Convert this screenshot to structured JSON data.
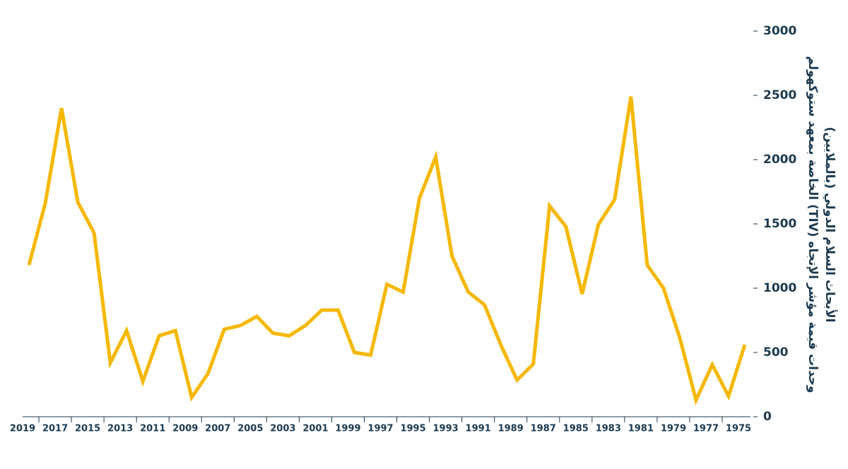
{
  "chart_data": {
    "type": "line",
    "y_label": [
      "وحدات قيمة مؤشر الإتجاه (TIV)  الخاصة بمعهد ستوكهولم",
      "الأبحاث السلام الدولي (بالملايين)"
    ],
    "categories": [
      "2019",
      null,
      "2017",
      null,
      "2015",
      null,
      "2013",
      null,
      "2011",
      null,
      "2009",
      null,
      "2007",
      null,
      "2005",
      null,
      "2003",
      null,
      "2001",
      null,
      "1999",
      null,
      "1997",
      null,
      "1995",
      null,
      "1993",
      null,
      "1991",
      null,
      "1989",
      null,
      "1987",
      null,
      "1985",
      null,
      "1983",
      null,
      "1981",
      null,
      "1979",
      null,
      "1977",
      null,
      "1975"
    ],
    "series": [
      {
        "name": "TIV",
        "color": "#f5b800",
        "values": [
          1180,
          1660,
          2400,
          1670,
          1430,
          420,
          670,
          275,
          630,
          670,
          150,
          335,
          680,
          710,
          780,
          650,
          630,
          710,
          830,
          830,
          500,
          480,
          1030,
          970,
          1700,
          2020,
          1250,
          970,
          870,
          560,
          285,
          410,
          1640,
          1480,
          955,
          1495,
          1690,
          2490,
          1180,
          1000,
          615,
          130,
          405,
          160,
          560
        ]
      }
    ],
    "ylim": [
      0,
      3000
    ],
    "yticks": [
      0,
      500,
      1000,
      1500,
      2000,
      2500,
      3000
    ]
  }
}
